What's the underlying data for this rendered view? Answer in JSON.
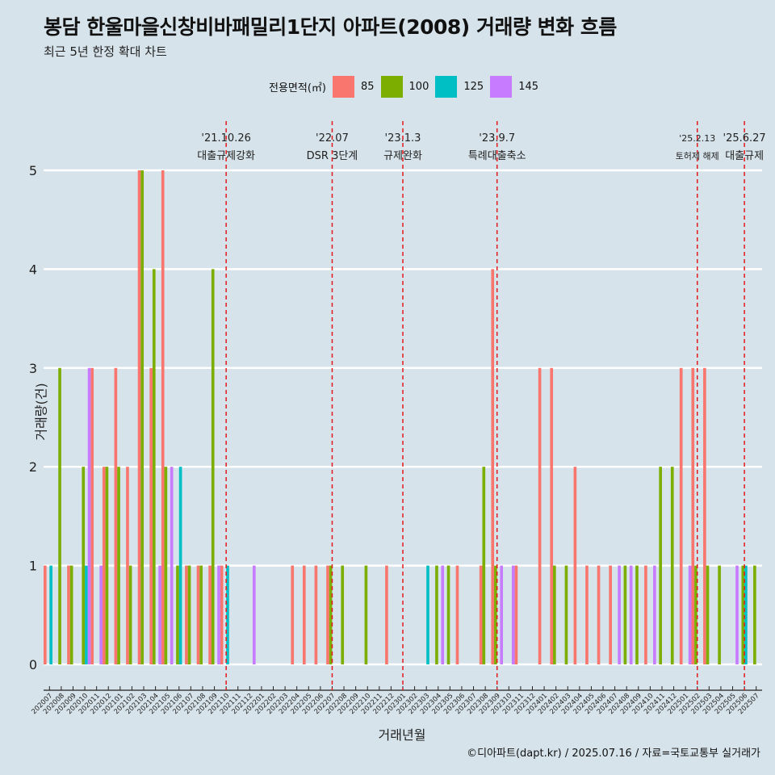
{
  "title": "봉담 한울마을신창비바패밀리1단지 아파트(2008) 거래량 변화 흐름",
  "subtitle": "최근 5년 한정 확대 차트",
  "footer": "©디아파트(dapt.kr) / 2025.07.16 / 자료=국토교통부 실거래가",
  "legend_title": "전용면적(㎡)",
  "colors": {
    "85": "#f8766d",
    "100": "#7cae00",
    "125": "#00bfc4",
    "145": "#c77cff",
    "event_line": "#e31a1c",
    "background": "#d6e3ea",
    "grid": "#ffffff"
  },
  "chart_data": {
    "type": "bar",
    "xlabel": "거래년월",
    "ylabel": "거래량(건)",
    "ylim": [
      0,
      5
    ],
    "yticks": [
      0,
      1,
      2,
      3,
      4,
      5
    ],
    "grid": "horizontal",
    "legend_position": "top",
    "categories": [
      "202007",
      "202008",
      "202009",
      "202010",
      "202011",
      "202012",
      "202101",
      "202102",
      "202103",
      "202104",
      "202105",
      "202106",
      "202107",
      "202108",
      "202109",
      "202110",
      "202111",
      "202112",
      "202201",
      "202202",
      "202203",
      "202204",
      "202205",
      "202206",
      "202207",
      "202208",
      "202209",
      "202210",
      "202211",
      "202212",
      "202301",
      "202302",
      "202303",
      "202304",
      "202305",
      "202306",
      "202307",
      "202308",
      "202309",
      "202310",
      "202311",
      "202312",
      "202401",
      "202402",
      "202403",
      "202404",
      "202405",
      "202406",
      "202407",
      "202408",
      "202409",
      "202410",
      "202411",
      "202412",
      "202501",
      "202502",
      "202503",
      "202504",
      "202505",
      "202506",
      "202507"
    ],
    "series": [
      {
        "name": "85",
        "values": [
          1,
          0,
          1,
          0,
          3,
          2,
          3,
          2,
          5,
          3,
          5,
          0,
          1,
          1,
          1,
          1,
          0,
          0,
          0,
          0,
          0,
          1,
          1,
          1,
          1,
          0,
          0,
          0,
          0,
          1,
          0,
          0,
          0,
          0,
          0,
          1,
          0,
          1,
          4,
          0,
          1,
          0,
          3,
          3,
          0,
          2,
          1,
          1,
          1,
          0,
          0,
          1,
          0,
          0,
          3,
          3,
          3,
          0,
          0,
          0,
          0
        ]
      },
      {
        "name": "100",
        "values": [
          0,
          3,
          1,
          2,
          0,
          2,
          2,
          1,
          5,
          4,
          2,
          1,
          1,
          1,
          4,
          0,
          0,
          0,
          0,
          0,
          0,
          0,
          0,
          0,
          1,
          1,
          0,
          1,
          0,
          0,
          0,
          0,
          0,
          1,
          1,
          0,
          0,
          2,
          1,
          0,
          0,
          0,
          0,
          1,
          1,
          0,
          0,
          0,
          0,
          1,
          1,
          0,
          2,
          2,
          0,
          1,
          1,
          1,
          0,
          1,
          1
        ]
      },
      {
        "name": "125",
        "values": [
          1,
          0,
          0,
          1,
          0,
          0,
          0,
          0,
          0,
          0,
          0,
          2,
          0,
          0,
          0,
          1,
          0,
          0,
          0,
          0,
          0,
          0,
          0,
          0,
          0,
          0,
          0,
          0,
          0,
          0,
          0,
          0,
          1,
          0,
          0,
          0,
          0,
          0,
          0,
          0,
          0,
          0,
          0,
          0,
          0,
          0,
          0,
          0,
          0,
          0,
          0,
          0,
          0,
          0,
          0,
          0,
          0,
          0,
          0,
          1,
          0
        ]
      },
      {
        "name": "145",
        "values": [
          0,
          0,
          0,
          3,
          1,
          0,
          0,
          0,
          0,
          1,
          2,
          0,
          0,
          0,
          1,
          0,
          0,
          1,
          0,
          0,
          0,
          0,
          0,
          0,
          0,
          0,
          0,
          0,
          0,
          0,
          0,
          0,
          0,
          1,
          0,
          0,
          0,
          0,
          1,
          1,
          0,
          0,
          0,
          0,
          0,
          0,
          0,
          0,
          1,
          1,
          0,
          1,
          0,
          0,
          1,
          0,
          0,
          0,
          1,
          0,
          0
        ]
      }
    ],
    "events": [
      {
        "date": "202110",
        "label_date": "'21.10.26",
        "label": "대출규제강화"
      },
      {
        "date": "202207",
        "label_date": "'22.07",
        "label": "DSR 3단계"
      },
      {
        "date": "202301",
        "label_date": "'23.1.3",
        "label": "규제완화"
      },
      {
        "date": "202309",
        "label_date": "'23.9.7",
        "label": "특례대출축소"
      },
      {
        "date": "202502",
        "label_date": "'25.2.13",
        "label": "토허제 해제"
      },
      {
        "date": "202506",
        "label_date": "'25.6.27",
        "label": "대출규제"
      }
    ]
  }
}
